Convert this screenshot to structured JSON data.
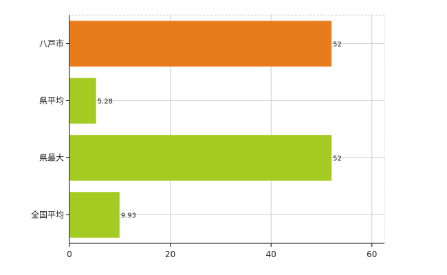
{
  "chart_data": {
    "type": "bar",
    "orientation": "horizontal",
    "categories": [
      "八戸市",
      "県平均",
      "県最大",
      "全国平均"
    ],
    "values": [
      52,
      5.28,
      52,
      9.93
    ],
    "value_labels": [
      "52",
      "5.28",
      "52",
      "9.93"
    ],
    "colors": [
      "#e87b1c",
      "#a3cb22",
      "#a3cb22",
      "#a3cb22"
    ],
    "xlim": [
      0,
      62
    ],
    "xticks": [
      0,
      20,
      40,
      60
    ],
    "xtick_labels": [
      "0",
      "20",
      "40",
      "60"
    ],
    "grid": true,
    "legend": false,
    "title": "",
    "xlabel": "",
    "ylabel": ""
  }
}
